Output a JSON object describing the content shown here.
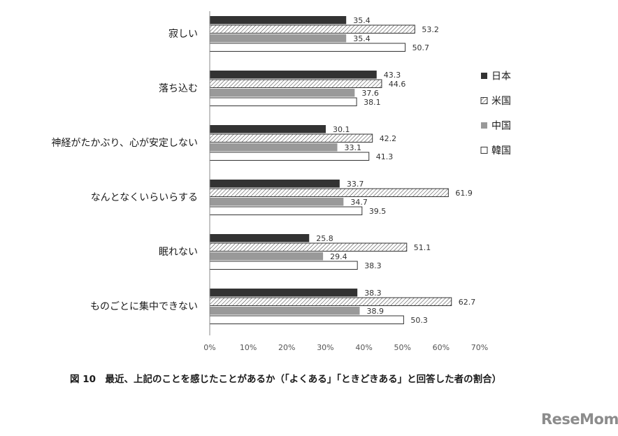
{
  "chart_data": {
    "type": "bar",
    "orientation": "horizontal",
    "categories": [
      "寂しい",
      "落ち込む",
      "神経がたかぶり、心が安定しない",
      "なんとなくいらいらする",
      "眠れない",
      "ものごとに集中できない"
    ],
    "series": [
      {
        "name": "日本",
        "values": [
          35.4,
          43.3,
          30.1,
          33.7,
          25.8,
          38.3
        ],
        "color": "#333333",
        "pattern": "solid"
      },
      {
        "name": "米国",
        "values": [
          53.2,
          44.6,
          42.2,
          61.9,
          51.1,
          62.7
        ],
        "color": "#ffffff",
        "pattern": "hatch"
      },
      {
        "name": "中国",
        "values": [
          35.4,
          37.6,
          33.1,
          34.7,
          29.4,
          38.9
        ],
        "color": "#999999",
        "pattern": "solid"
      },
      {
        "name": "韓国",
        "values": [
          50.7,
          38.1,
          41.3,
          39.5,
          38.3,
          50.3
        ],
        "color": "#ffffff",
        "pattern": "outline"
      }
    ],
    "xticks": [
      "0%",
      "10%",
      "20%",
      "30%",
      "40%",
      "50%",
      "60%",
      "70%"
    ],
    "xlim": [
      0,
      70
    ],
    "grid": false,
    "legend_position": "right"
  },
  "caption": "図 10　最近、上記のことを感じたことがあるか（「よくある」「ときどきある」と回答した者の割合）",
  "watermark": "ReseMom"
}
